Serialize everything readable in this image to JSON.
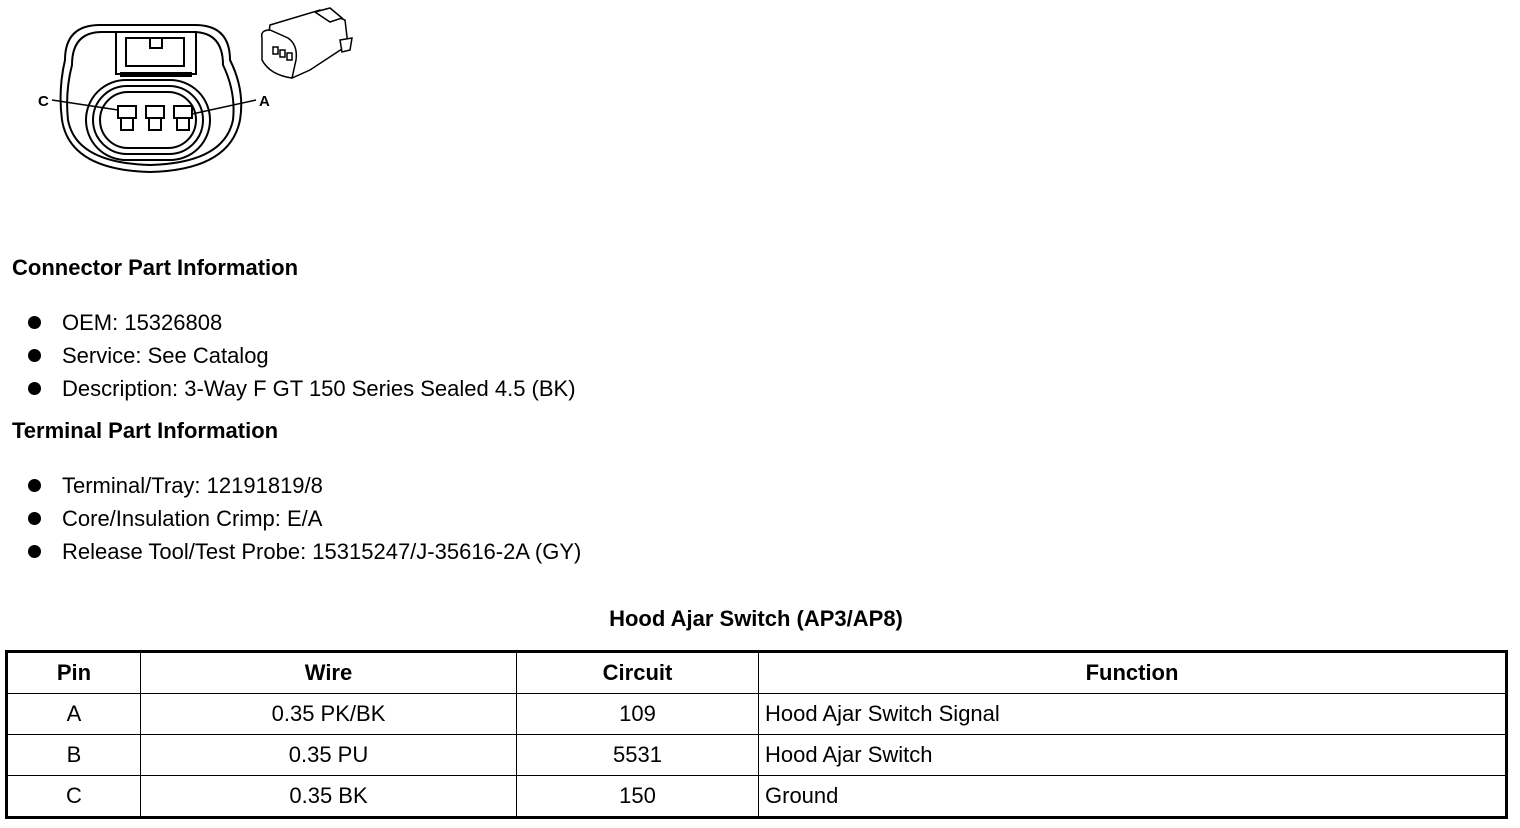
{
  "diagram": {
    "pin_labels": [
      "C",
      "A"
    ]
  },
  "connector_part_info": {
    "heading": "Connector Part Information",
    "items": [
      "OEM: 15326808",
      "Service: See Catalog",
      "Description: 3-Way F GT 150 Series Sealed 4.5 (BK)"
    ]
  },
  "terminal_part_info": {
    "heading": "Terminal Part Information",
    "items": [
      "Terminal/Tray: 12191819/8",
      "Core/Insulation Crimp: E/A",
      "Release Tool/Test Probe: 15315247/J-35616-2A (GY)"
    ]
  },
  "table": {
    "title": "Hood Ajar Switch (AP3/AP8)",
    "headers": [
      "Pin",
      "Wire",
      "Circuit",
      "Function"
    ],
    "rows": [
      [
        "A",
        "0.35 PK/BK",
        "109",
        "Hood Ajar Switch Signal"
      ],
      [
        "B",
        "0.35 PU",
        "5531",
        "Hood Ajar Switch"
      ],
      [
        "C",
        "0.35 BK",
        "150",
        "Ground"
      ]
    ]
  }
}
